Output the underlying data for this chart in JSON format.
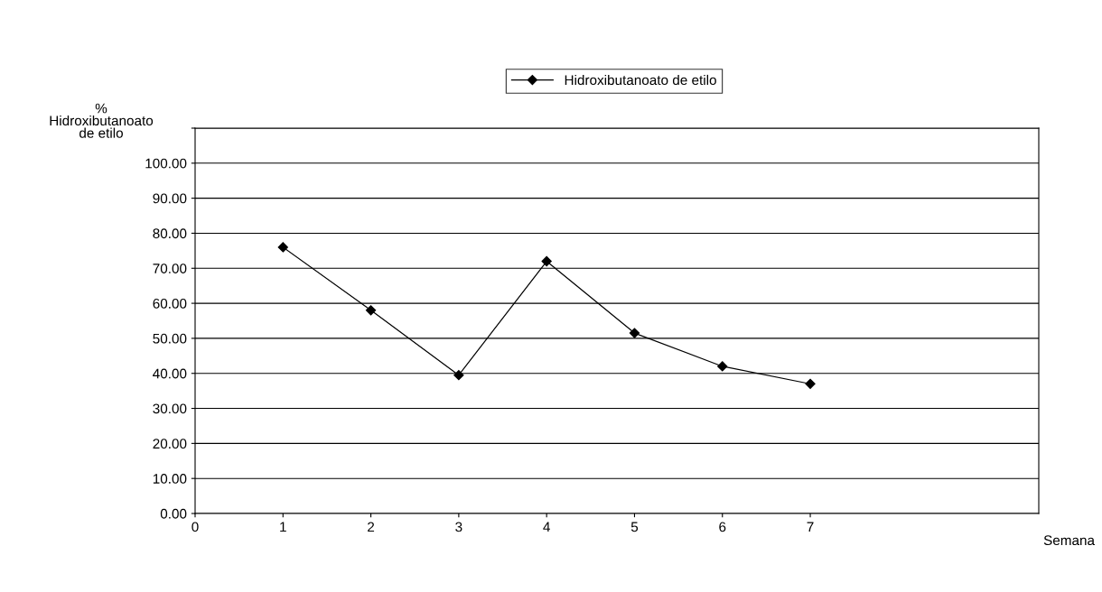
{
  "chart_data": {
    "type": "line",
    "xlabel": "Semana",
    "ylabel": "%\nHidroxibutanoato\nde etilo",
    "x": [
      1,
      2,
      3,
      4,
      5,
      6,
      7
    ],
    "series": [
      {
        "name": "Hidroxibutanoato de etilo",
        "color": "#000000",
        "values": [
          76,
          58,
          39.5,
          72,
          51.5,
          42,
          37
        ]
      }
    ],
    "xlim": [
      0,
      9.6
    ],
    "xticks": [
      0,
      1,
      2,
      3,
      4,
      5,
      6,
      7
    ],
    "ylim": [
      0,
      110
    ],
    "yticks": [
      {
        "value": 0,
        "label": "0.00"
      },
      {
        "value": 10,
        "label": "10.00"
      },
      {
        "value": 20,
        "label": "20.00"
      },
      {
        "value": 30,
        "label": "30.00"
      },
      {
        "value": 40,
        "label": "40.00"
      },
      {
        "value": 50,
        "label": "50.00"
      },
      {
        "value": 60,
        "label": "60.00"
      },
      {
        "value": 70,
        "label": "70.00"
      },
      {
        "value": 80,
        "label": "80.00"
      },
      {
        "value": 90,
        "label": "90.00"
      },
      {
        "value": 100,
        "label": "100.00"
      },
      {
        "value": 110,
        "label": null
      }
    ],
    "grid": "y",
    "legend": "top",
    "marker": "diamond",
    "line_style": "solid"
  }
}
